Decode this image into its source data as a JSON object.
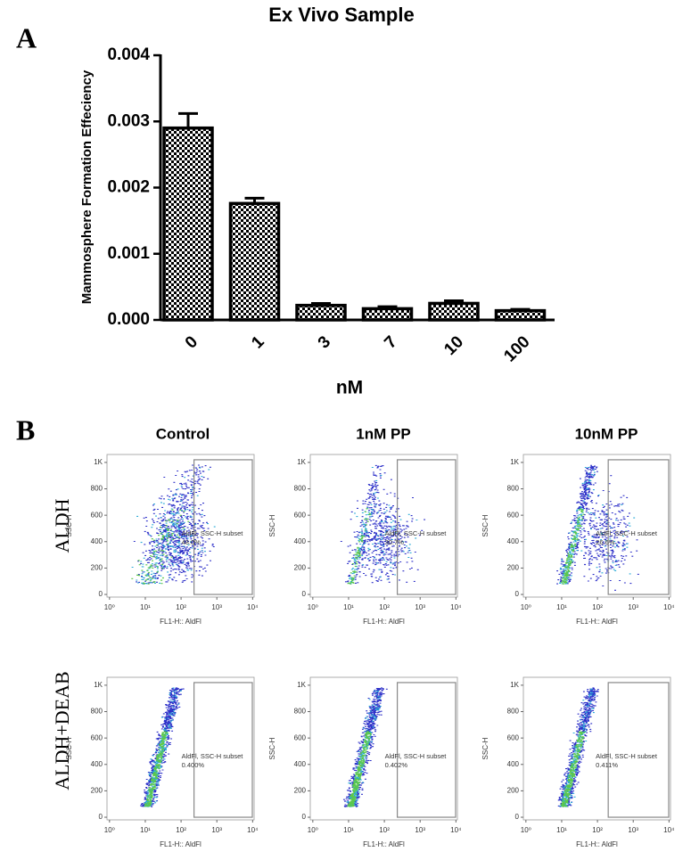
{
  "chart_data": [
    {
      "type": "bar",
      "title": "Ex  Vivo Sample",
      "y_label": "Mammosphere Formation Effeciency",
      "x_label": "nM",
      "categories": [
        "0",
        "1",
        "3",
        "7",
        "10",
        "100"
      ],
      "values": [
        0.0029,
        0.00176,
        0.00022,
        0.00017,
        0.00025,
        0.00014
      ],
      "errors": [
        0.00022,
        8e-05,
        3e-05,
        3e-05,
        4e-05,
        2e-05
      ],
      "color": "#000000",
      "ylim": [
        0,
        0.004
      ],
      "yticks": [
        {
          "value": 0,
          "label": "0.000"
        },
        {
          "value": 0.001,
          "label": "0.001"
        },
        {
          "value": 0.002,
          "label": "0.002"
        },
        {
          "value": 0.003,
          "label": "0.003"
        },
        {
          "value": 0.004,
          "label": "0.004"
        }
      ]
    }
  ],
  "panel_labels": [
    "A",
    "B"
  ],
  "flow": {
    "columns": [
      "Control",
      "1nM PP",
      "10nM PP"
    ],
    "rows": [
      "ALDH",
      "ALDH+DEAB"
    ],
    "x_label": "FL1-H:: AldFl",
    "y_label": "SSC-H",
    "gate_name": "AldFl, SSC-H subset",
    "xlim": [
      0.85,
      11000
    ],
    "ylim": [
      -20,
      1060
    ],
    "log_x": true,
    "xticks": [
      {
        "value": 1,
        "label": "10⁰"
      },
      {
        "value": 10,
        "label": "10¹"
      },
      {
        "value": 100,
        "label": "10²"
      },
      {
        "value": 1000,
        "label": "10³"
      },
      {
        "value": 10000,
        "label": "10⁴"
      }
    ],
    "yticks": [
      0,
      200,
      400,
      600,
      800,
      {
        "value": 1000,
        "label": "1K"
      }
    ],
    "plots": [
      {
        "gate_percent": "48.0%",
        "gate_x": [
          230,
          10000
        ],
        "gate_y": [
          0,
          1020
        ]
      },
      {
        "gate_percent": "30.7%",
        "gate_x": [
          230,
          10000
        ],
        "gate_y": [
          0,
          1020
        ]
      },
      {
        "gate_percent": "26.6%",
        "gate_x": [
          200,
          10000
        ],
        "gate_y": [
          0,
          1020
        ]
      },
      {
        "gate_percent": "0.400%",
        "gate_x": [
          230,
          10000
        ],
        "gate_y": [
          0,
          1020
        ]
      },
      {
        "gate_percent": "0.402%",
        "gate_x": [
          230,
          10000
        ],
        "gate_y": [
          0,
          1020
        ]
      },
      {
        "gate_percent": "0.411%",
        "gate_x": [
          200,
          10000
        ],
        "gate_y": [
          0,
          1020
        ]
      }
    ]
  }
}
